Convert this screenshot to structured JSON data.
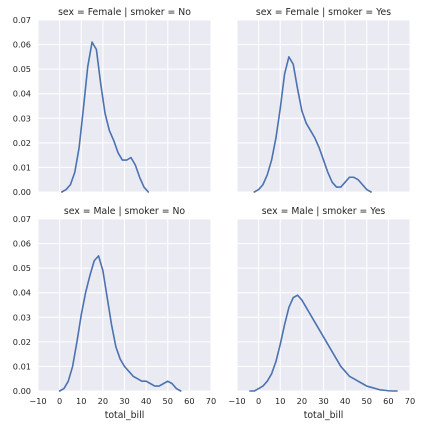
{
  "chart_data": {
    "type": "line",
    "description_style": "facet grid of kernel density curves",
    "x_ticks": [
      "−10",
      "0",
      "10",
      "20",
      "30",
      "40",
      "50",
      "60",
      "70"
    ],
    "x_tick_values": [
      -10,
      0,
      10,
      20,
      30,
      40,
      50,
      60,
      70
    ],
    "y_ticks": [
      "0.00",
      "0.01",
      "0.02",
      "0.03",
      "0.04",
      "0.05",
      "0.06",
      "0.07"
    ],
    "y_tick_values": [
      0,
      0.01,
      0.02,
      0.03,
      0.04,
      0.05,
      0.06,
      0.07
    ],
    "xlim": [
      -10,
      70
    ],
    "ylim": [
      0,
      0.07
    ],
    "xlabel": "total_bill",
    "ylabel": "",
    "grid": true,
    "series_color": "#4c72b0",
    "background_color": "#eaeaf2",
    "panels": [
      {
        "title": "sex = Female | smoker = No",
        "row": 0,
        "col": 0,
        "x": [
          1,
          3,
          5,
          7,
          9,
          11,
          13,
          15,
          17,
          19,
          21,
          23,
          25,
          27,
          29,
          31,
          33,
          35,
          37,
          39,
          41
        ],
        "y": [
          0.0,
          0.001,
          0.003,
          0.008,
          0.018,
          0.034,
          0.051,
          0.061,
          0.058,
          0.044,
          0.032,
          0.025,
          0.021,
          0.016,
          0.013,
          0.013,
          0.014,
          0.011,
          0.006,
          0.002,
          0.0
        ]
      },
      {
        "title": "sex = Female | smoker = Yes",
        "row": 0,
        "col": 1,
        "x": [
          -2,
          0,
          2,
          4,
          6,
          8,
          10,
          12,
          14,
          16,
          18,
          20,
          22,
          24,
          26,
          28,
          30,
          32,
          34,
          36,
          38,
          40,
          42,
          44,
          46,
          48,
          50,
          52
        ],
        "y": [
          0.0,
          0.001,
          0.003,
          0.007,
          0.013,
          0.022,
          0.034,
          0.048,
          0.055,
          0.052,
          0.042,
          0.033,
          0.028,
          0.025,
          0.022,
          0.018,
          0.013,
          0.008,
          0.004,
          0.002,
          0.002,
          0.004,
          0.006,
          0.006,
          0.005,
          0.003,
          0.001,
          0.0
        ]
      },
      {
        "title": "sex = Male | smoker = No",
        "row": 1,
        "col": 0,
        "x": [
          0,
          2,
          4,
          6,
          8,
          10,
          12,
          14,
          16,
          18,
          20,
          22,
          24,
          26,
          28,
          30,
          32,
          34,
          36,
          38,
          40,
          42,
          44,
          46,
          48,
          50,
          52,
          54,
          56
        ],
        "y": [
          0.0,
          0.001,
          0.004,
          0.01,
          0.02,
          0.031,
          0.04,
          0.047,
          0.053,
          0.055,
          0.049,
          0.038,
          0.027,
          0.018,
          0.013,
          0.01,
          0.008,
          0.006,
          0.005,
          0.004,
          0.004,
          0.003,
          0.002,
          0.002,
          0.003,
          0.004,
          0.003,
          0.001,
          0.0
        ]
      },
      {
        "title": "sex = Male | smoker = Yes",
        "row": 1,
        "col": 1,
        "x": [
          -4,
          -2,
          0,
          2,
          4,
          6,
          8,
          10,
          12,
          14,
          16,
          18,
          20,
          22,
          24,
          26,
          28,
          30,
          32,
          34,
          36,
          38,
          40,
          42,
          44,
          46,
          48,
          50,
          52,
          54,
          56,
          58,
          60,
          62,
          64
        ],
        "y": [
          0.0,
          0.0,
          0.001,
          0.002,
          0.004,
          0.007,
          0.012,
          0.019,
          0.027,
          0.034,
          0.038,
          0.039,
          0.037,
          0.034,
          0.031,
          0.028,
          0.025,
          0.022,
          0.019,
          0.016,
          0.013,
          0.01,
          0.008,
          0.006,
          0.005,
          0.004,
          0.003,
          0.002,
          0.0015,
          0.001,
          0.0005,
          0.0003,
          0.0001,
          0.0,
          0.0
        ]
      }
    ]
  }
}
